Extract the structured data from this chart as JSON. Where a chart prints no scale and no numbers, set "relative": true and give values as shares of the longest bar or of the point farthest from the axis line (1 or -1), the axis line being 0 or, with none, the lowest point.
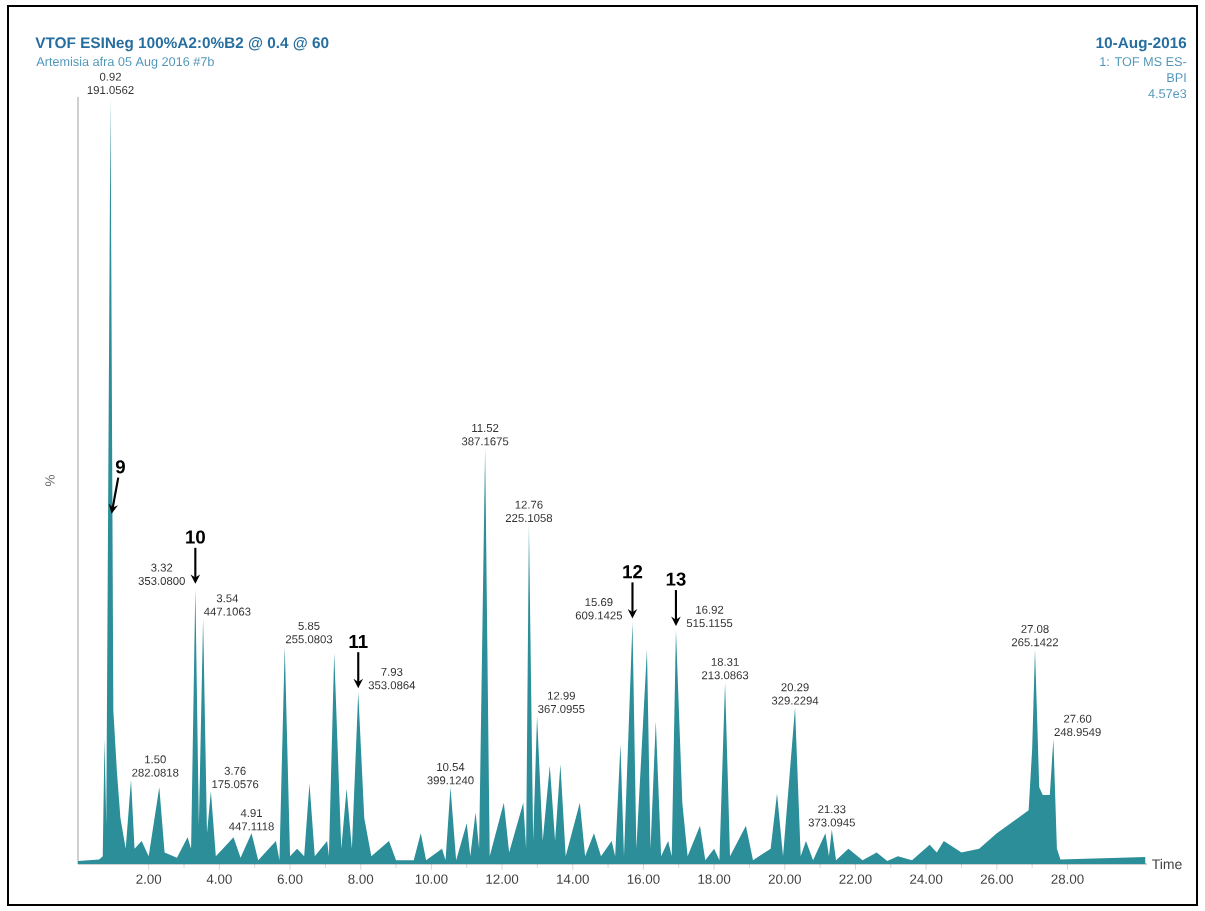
{
  "chart_data": {
    "type": "area",
    "title": "VTOF ESINeg 100%A2:0%B2 @ 0.4 @ 60",
    "subtitle": "Artemisia afra  05 Aug 2016 #7b",
    "xlabel": "Time",
    "ylabel": "%",
    "relative": true,
    "color": "#2b8e98",
    "xlim": [
      0,
      30.25
    ],
    "xticks": [
      {
        "value": 2,
        "label": "2.00"
      },
      {
        "value": 4,
        "label": "4.00"
      },
      {
        "value": 6,
        "label": "6.00"
      },
      {
        "value": 8,
        "label": "8.00"
      },
      {
        "value": 10,
        "label": "10.00"
      },
      {
        "value": 12,
        "label": "12.00"
      },
      {
        "value": 14,
        "label": "14.00"
      },
      {
        "value": 16,
        "label": "16.00"
      },
      {
        "value": 18,
        "label": "18.00"
      },
      {
        "value": 20,
        "label": "20.00"
      },
      {
        "value": 22,
        "label": "22.00"
      },
      {
        "value": 24,
        "label": "24.00"
      },
      {
        "value": 26,
        "label": "26.00"
      },
      {
        "value": 28,
        "label": "28.00"
      }
    ],
    "x": [
      0,
      0.6,
      0.7,
      0.75,
      0.8,
      0.92,
      1.0,
      1.1,
      1.2,
      1.35,
      1.5,
      1.6,
      1.8,
      2.0,
      2.3,
      2.45,
      2.8,
      3.1,
      3.2,
      3.32,
      3.42,
      3.54,
      3.65,
      3.76,
      3.9,
      4.1,
      4.4,
      4.6,
      4.91,
      5.1,
      5.6,
      5.7,
      5.85,
      6.0,
      6.2,
      6.4,
      6.55,
      6.7,
      7.05,
      7.1,
      7.25,
      7.45,
      7.6,
      7.75,
      7.93,
      8.1,
      8.3,
      8.8,
      9.0,
      9.5,
      9.7,
      9.85,
      10.3,
      10.4,
      10.54,
      10.7,
      11.0,
      11.1,
      11.25,
      11.35,
      11.52,
      11.65,
      12.05,
      12.2,
      12.6,
      12.68,
      12.76,
      12.88,
      12.99,
      13.15,
      13.35,
      13.5,
      13.65,
      13.8,
      14.2,
      14.35,
      14.6,
      14.8,
      15.1,
      15.2,
      15.35,
      15.45,
      15.69,
      15.8,
      16.1,
      16.2,
      16.35,
      16.5,
      16.7,
      16.8,
      16.92,
      17.1,
      17.25,
      17.6,
      17.75,
      18.0,
      18.15,
      18.31,
      18.45,
      18.9,
      19.1,
      19.6,
      19.78,
      19.95,
      20.29,
      20.45,
      20.6,
      20.8,
      21.15,
      21.25,
      21.33,
      21.45,
      21.8,
      22.2,
      22.6,
      22.9,
      23.2,
      23.6,
      24.1,
      24.3,
      24.5,
      25.0,
      25.5,
      26.0,
      26.6,
      26.9,
      27.0,
      27.08,
      27.2,
      27.3,
      27.5,
      27.6,
      27.7,
      27.8,
      28.5,
      29.5,
      30.2
    ],
    "values": [
      0.004,
      0.006,
      0.01,
      0.163,
      0.05,
      1.0,
      0.2,
      0.121,
      0.06,
      0.02,
      0.11,
      0.02,
      0.03,
      0.01,
      0.1,
      0.015,
      0.008,
      0.035,
      0.02,
      0.36,
      0.05,
      0.32,
      0.04,
      0.095,
      0.01,
      0.02,
      0.035,
      0.008,
      0.04,
      0.005,
      0.03,
      0.005,
      0.284,
      0.01,
      0.02,
      0.01,
      0.105,
      0.01,
      0.03,
      0.01,
      0.275,
      0.02,
      0.098,
      0.02,
      0.224,
      0.06,
      0.01,
      0.03,
      0.005,
      0.005,
      0.04,
      0.005,
      0.02,
      0.005,
      0.1,
      0.005,
      0.053,
      0.01,
      0.067,
      0.02,
      0.542,
      0.01,
      0.08,
      0.015,
      0.08,
      0.02,
      0.442,
      0.03,
      0.193,
      0.03,
      0.128,
      0.03,
      0.13,
      0.01,
      0.08,
      0.01,
      0.04,
      0.01,
      0.03,
      0.01,
      0.156,
      0.01,
      0.315,
      0.02,
      0.28,
      0.02,
      0.186,
      0.01,
      0.03,
      0.01,
      0.305,
      0.08,
      0.01,
      0.05,
      0.005,
      0.02,
      0.005,
      0.237,
      0.01,
      0.05,
      0.005,
      0.02,
      0.092,
      0.01,
      0.204,
      0.01,
      0.03,
      0.005,
      0.04,
      0.01,
      0.045,
      0.005,
      0.02,
      0.005,
      0.015,
      0.004,
      0.01,
      0.005,
      0.025,
      0.015,
      0.03,
      0.015,
      0.02,
      0.04,
      0.06,
      0.07,
      0.15,
      0.28,
      0.1,
      0.09,
      0.09,
      0.163,
      0.02,
      0.006,
      0.007,
      0.008,
      0.009
    ],
    "annotations": [
      "10-Aug-2016",
      "1: TOF MS ES-",
      "BPI",
      "4.57e3",
      {
        "text": "0.92 191.0562",
        "x": 0.92,
        "y": 1.0
      },
      {
        "text": "1.50 282.0818",
        "x": 1.5,
        "y": 0.11
      },
      {
        "text": "3.32 353.0800",
        "x": 3.32,
        "y": 0.36
      },
      {
        "text": "3.54 447.1063",
        "x": 3.54,
        "y": 0.32
      },
      {
        "text": "3.76 175.0576",
        "x": 3.76,
        "y": 0.095
      },
      {
        "text": "4.91 447.1118",
        "x": 4.91,
        "y": 0.04
      },
      {
        "text": "5.85 255.0803",
        "x": 5.85,
        "y": 0.284
      },
      {
        "text": "7.93 353.0864",
        "x": 7.93,
        "y": 0.224
      },
      {
        "text": "10.54 399.1240",
        "x": 10.54,
        "y": 0.1
      },
      {
        "text": "11.52 387.1675",
        "x": 11.52,
        "y": 0.542
      },
      {
        "text": "12.76 225.1058",
        "x": 12.76,
        "y": 0.442
      },
      {
        "text": "12.99 367.0955",
        "x": 12.99,
        "y": 0.193
      },
      {
        "text": "15.69 609.1425",
        "x": 15.69,
        "y": 0.315
      },
      {
        "text": "16.92 515.1155",
        "x": 16.92,
        "y": 0.305
      },
      {
        "text": "18.31 213.0863",
        "x": 18.31,
        "y": 0.237
      },
      {
        "text": "20.29 329.2294",
        "x": 20.29,
        "y": 0.204
      },
      {
        "text": "21.33 373.0945",
        "x": 21.33,
        "y": 0.045
      },
      {
        "text": "27.08 265.1422",
        "x": 27.08,
        "y": 0.28
      },
      {
        "text": "27.60 248.9549",
        "x": 27.6,
        "y": 0.163
      },
      {
        "text": "9",
        "x": 0.9745,
        "y": 0.455
      },
      {
        "text": "10",
        "x": 3.32,
        "y": 0.36
      },
      {
        "text": "11",
        "x": 7.93,
        "y": 0.224
      },
      {
        "text": "12",
        "x": 15.69,
        "y": 0.315
      },
      {
        "text": "13",
        "x": 16.92,
        "y": 0.305
      }
    ]
  }
}
